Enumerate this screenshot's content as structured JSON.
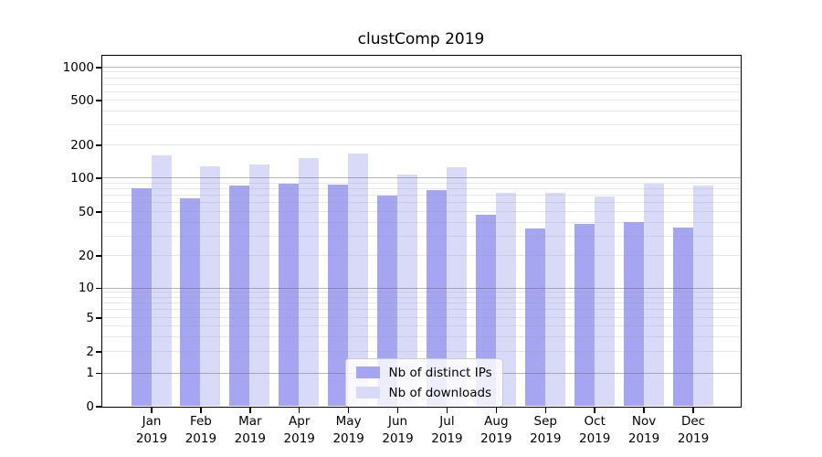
{
  "chart_data": {
    "type": "bar",
    "title": "clustComp 2019",
    "categories": [
      "Jan",
      "Feb",
      "Mar",
      "Apr",
      "May",
      "Jun",
      "Jul",
      "Aug",
      "Sep",
      "Oct",
      "Nov",
      "Dec"
    ],
    "x_sublabel": "2019",
    "series": [
      {
        "name": "Nb of distinct IPs",
        "color": "#a5a5f2",
        "values": [
          81,
          65,
          86,
          88,
          87,
          69,
          78,
          47,
          35,
          39,
          40,
          36
        ]
      },
      {
        "name": "Nb of downloads",
        "color": "#d9d9f8",
        "values": [
          159,
          126,
          133,
          150,
          168,
          107,
          125,
          74,
          74,
          68,
          89,
          86
        ]
      }
    ],
    "yaxis": {
      "scale": "log-with-zero",
      "ticks": [
        0,
        1,
        2,
        5,
        10,
        20,
        50,
        100,
        200,
        500,
        1000
      ],
      "ylim": [
        0,
        1280
      ],
      "grid": true
    },
    "legend": {
      "position": "inside-bottom-center"
    }
  },
  "colors": {
    "background": "#ffffff",
    "axis": "#000000",
    "text": "#000000",
    "major_grid": "rgba(110,110,110,0.5)",
    "minor_grid": "rgba(150,150,150,0.22)",
    "legend_bg": "rgba(255,255,255,0.8)",
    "legend_border": "#cccccc"
  }
}
